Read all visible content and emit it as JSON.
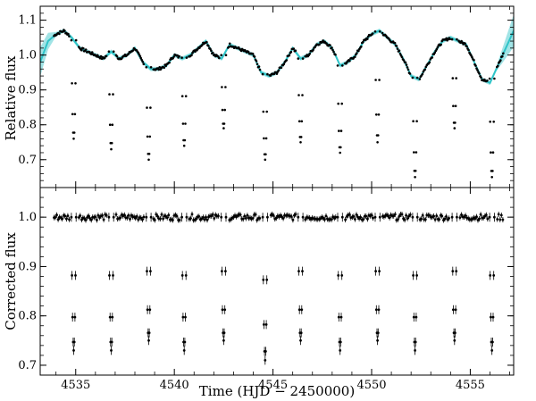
{
  "chart_data": [
    {
      "panel": "top",
      "type": "scatter",
      "title": "",
      "ylabel": "Relative flux",
      "xlabel": "",
      "xlim": [
        4533.2,
        4557.2
      ],
      "ylim": [
        0.62,
        1.14
      ],
      "yticks": [
        0.7,
        0.8,
        0.9,
        1.0,
        1.1
      ],
      "yticklabels": [
        "0.7",
        "0.8",
        "0.9",
        "1.0",
        "1.1"
      ],
      "xticks": [
        4535,
        4540,
        4545,
        4550,
        4555
      ],
      "model_color": "#2ec4c8",
      "point_color": "#000000",
      "baseline": {
        "x": [
          4533.2,
          4533.6,
          4534.0,
          4534.4,
          4534.8,
          4535.2,
          4535.6,
          4536.0,
          4536.4,
          4536.8,
          4537.2,
          4537.6,
          4538.0,
          4538.4,
          4538.8,
          4539.2,
          4539.6,
          4540.0,
          4540.4,
          4540.8,
          4541.2,
          4541.6,
          4542.0,
          4542.4,
          4542.8,
          4543.2,
          4543.6,
          4544.0,
          4544.4,
          4544.8,
          4545.2,
          4545.6,
          4546.0,
          4546.4,
          4546.8,
          4547.2,
          4547.6,
          4548.0,
          4548.4,
          4548.8,
          4549.2,
          4549.6,
          4550.0,
          4550.4,
          4550.8,
          4551.2,
          4551.6,
          4552.0,
          4552.4,
          4552.8,
          4553.2,
          4553.6,
          4554.0,
          4554.4,
          4554.8,
          4555.2,
          4555.6,
          4556.0,
          4556.4,
          4556.8,
          4557.2
        ],
        "y": [
          0.98,
          1.04,
          1.06,
          1.07,
          1.05,
          1.02,
          1.01,
          1.0,
          0.99,
          1.01,
          0.99,
          1.0,
          1.02,
          0.98,
          0.96,
          0.96,
          0.97,
          1.0,
          0.99,
          1.0,
          1.02,
          1.04,
          1.0,
          0.99,
          1.03,
          1.02,
          1.01,
          1.0,
          0.95,
          0.94,
          0.95,
          0.98,
          1.02,
          0.99,
          1.0,
          1.03,
          1.04,
          1.02,
          0.97,
          0.98,
          1.0,
          1.04,
          1.06,
          1.07,
          1.05,
          1.03,
          0.99,
          0.94,
          0.93,
          0.97,
          1.01,
          1.04,
          1.05,
          1.04,
          1.03,
          0.98,
          0.93,
          0.92,
          0.97,
          1.02,
          1.07
        ]
      },
      "eclipses": [
        {
          "x": 4534.9,
          "min": 0.76
        },
        {
          "x": 4536.8,
          "min": 0.73
        },
        {
          "x": 4538.7,
          "min": 0.7
        },
        {
          "x": 4540.5,
          "min": 0.74
        },
        {
          "x": 4542.5,
          "min": 0.79
        },
        {
          "x": 4544.6,
          "min": 0.7
        },
        {
          "x": 4546.4,
          "min": 0.75
        },
        {
          "x": 4548.4,
          "min": 0.72
        },
        {
          "x": 4550.3,
          "min": 0.75
        },
        {
          "x": 4552.2,
          "min": 0.65
        },
        {
          "x": 4554.2,
          "min": 0.79
        },
        {
          "x": 4556.1,
          "min": 0.65
        }
      ]
    },
    {
      "panel": "bottom",
      "type": "scatter",
      "title": "",
      "ylabel": "Corrected flux",
      "xlabel": "Time (HJD − 2450000)",
      "xlim": [
        4533.2,
        4557.2
      ],
      "ylim": [
        0.68,
        1.06
      ],
      "yticks": [
        0.7,
        0.8,
        0.9,
        1.0
      ],
      "yticklabels": [
        "0.7",
        "0.8",
        "0.9",
        "1.0"
      ],
      "xticks": [
        4535,
        4540,
        4545,
        4550,
        4555
      ],
      "xticklabels": [
        "4535",
        "4540",
        "4545",
        "4550",
        "4555"
      ],
      "point_color": "#000000",
      "baseline_level": 1.0,
      "eclipses": [
        {
          "x": 4534.9,
          "min": 0.73
        },
        {
          "x": 4536.8,
          "min": 0.73
        },
        {
          "x": 4538.7,
          "min": 0.75
        },
        {
          "x": 4540.5,
          "min": 0.73
        },
        {
          "x": 4542.5,
          "min": 0.75
        },
        {
          "x": 4544.6,
          "min": 0.71
        },
        {
          "x": 4546.4,
          "min": 0.75
        },
        {
          "x": 4548.4,
          "min": 0.73
        },
        {
          "x": 4550.3,
          "min": 0.75
        },
        {
          "x": 4552.2,
          "min": 0.73
        },
        {
          "x": 4554.2,
          "min": 0.75
        },
        {
          "x": 4556.1,
          "min": 0.73
        }
      ]
    }
  ]
}
